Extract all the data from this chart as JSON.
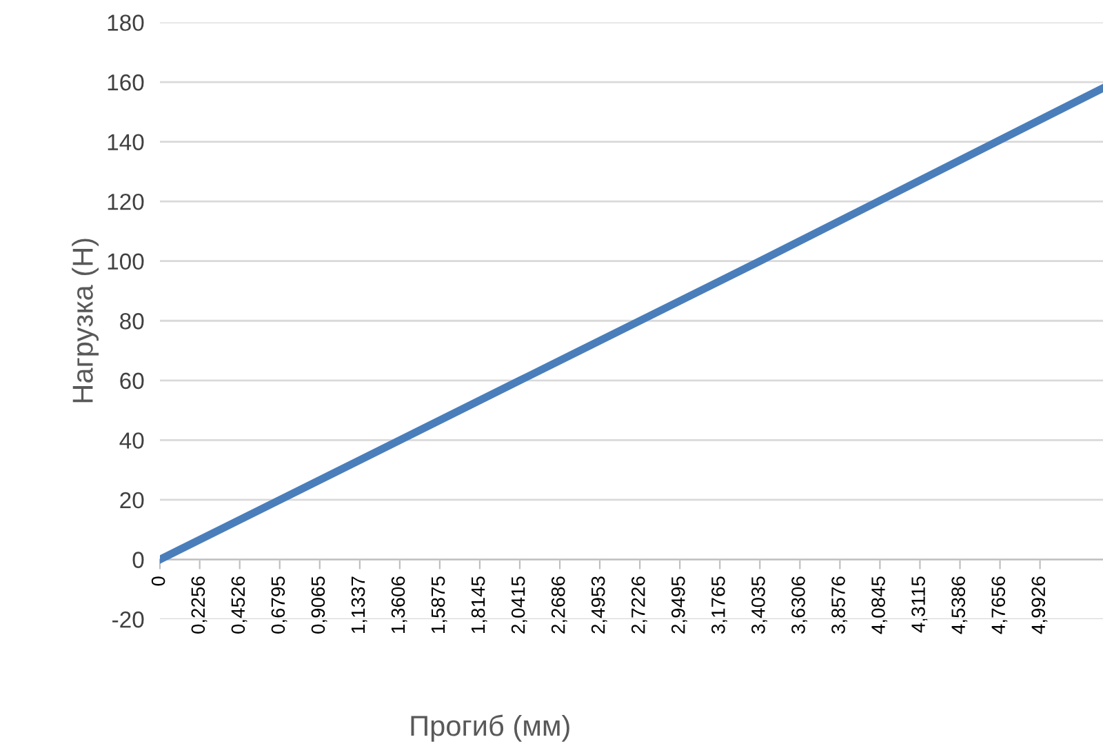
{
  "chart_data": {
    "type": "line",
    "xlabel": "Прогиб (мм)",
    "ylabel": "Нагрузка (Н)",
    "x": [
      0,
      2.0415,
      3.4035,
      5.35
    ],
    "series": [
      {
        "color": "#4a7ebb",
        "values": [
          0,
          60,
          100,
          158
        ]
      }
    ],
    "xlim": [
      0,
      5.35
    ],
    "xticks": [
      0,
      {
        "value": 0.2256,
        "label": "0,2256"
      },
      {
        "value": 0.4526,
        "label": "0,4526"
      },
      {
        "value": 0.6795,
        "label": "0,6795"
      },
      {
        "value": 0.9065,
        "label": "0,9065"
      },
      {
        "value": 1.1337,
        "label": "1,1337"
      },
      {
        "value": 1.3606,
        "label": "1,3606"
      },
      {
        "value": 1.5875,
        "label": "1,5875"
      },
      {
        "value": 1.8145,
        "label": "1,8145"
      },
      {
        "value": 2.0415,
        "label": "2,0415"
      },
      {
        "value": 2.2686,
        "label": "2,2686"
      },
      {
        "value": 2.4953,
        "label": "2,4953"
      },
      {
        "value": 2.7226,
        "label": "2,7226"
      },
      {
        "value": 2.9495,
        "label": "2,9495"
      },
      {
        "value": 3.1765,
        "label": "3,1765"
      },
      {
        "value": 3.4035,
        "label": "3,4035"
      },
      {
        "value": 3.6306,
        "label": "3,6306"
      },
      {
        "value": 3.8576,
        "label": "3,8576"
      },
      {
        "value": 4.0845,
        "label": "4,0845"
      },
      {
        "value": 4.3115,
        "label": "4,3115"
      },
      {
        "value": 4.5386,
        "label": "4,5386"
      },
      {
        "value": 4.7656,
        "label": "4,7656"
      },
      {
        "value": 4.9926,
        "label": "4,9926"
      }
    ],
    "ylim": [
      -20,
      180
    ],
    "yticks": [
      -20,
      0,
      20,
      40,
      60,
      80,
      100,
      120,
      140,
      160,
      180
    ],
    "grid": "y",
    "marker": "none",
    "line_style": "solid"
  }
}
